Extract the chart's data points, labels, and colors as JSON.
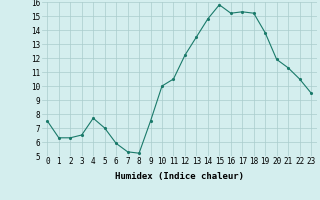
{
  "x": [
    0,
    1,
    2,
    3,
    4,
    5,
    6,
    7,
    8,
    9,
    10,
    11,
    12,
    13,
    14,
    15,
    16,
    17,
    18,
    19,
    20,
    21,
    22,
    23
  ],
  "y": [
    7.5,
    6.3,
    6.3,
    6.5,
    7.7,
    7.0,
    5.9,
    5.3,
    5.2,
    7.5,
    10.0,
    10.5,
    12.2,
    13.5,
    14.8,
    15.8,
    15.2,
    15.3,
    15.2,
    13.8,
    11.9,
    11.3,
    10.5,
    9.5
  ],
  "xlabel": "Humidex (Indice chaleur)",
  "xlim": [
    -0.5,
    23.5
  ],
  "ylim": [
    5,
    16
  ],
  "yticks": [
    5,
    6,
    7,
    8,
    9,
    10,
    11,
    12,
    13,
    14,
    15,
    16
  ],
  "xticks": [
    0,
    1,
    2,
    3,
    4,
    5,
    6,
    7,
    8,
    9,
    10,
    11,
    12,
    13,
    14,
    15,
    16,
    17,
    18,
    19,
    20,
    21,
    22,
    23
  ],
  "line_color": "#1a7a6a",
  "marker_color": "#1a7a6a",
  "bg_color": "#d4eeee",
  "grid_color": "#aacccc",
  "label_fontsize": 6.5,
  "tick_fontsize": 5.5
}
